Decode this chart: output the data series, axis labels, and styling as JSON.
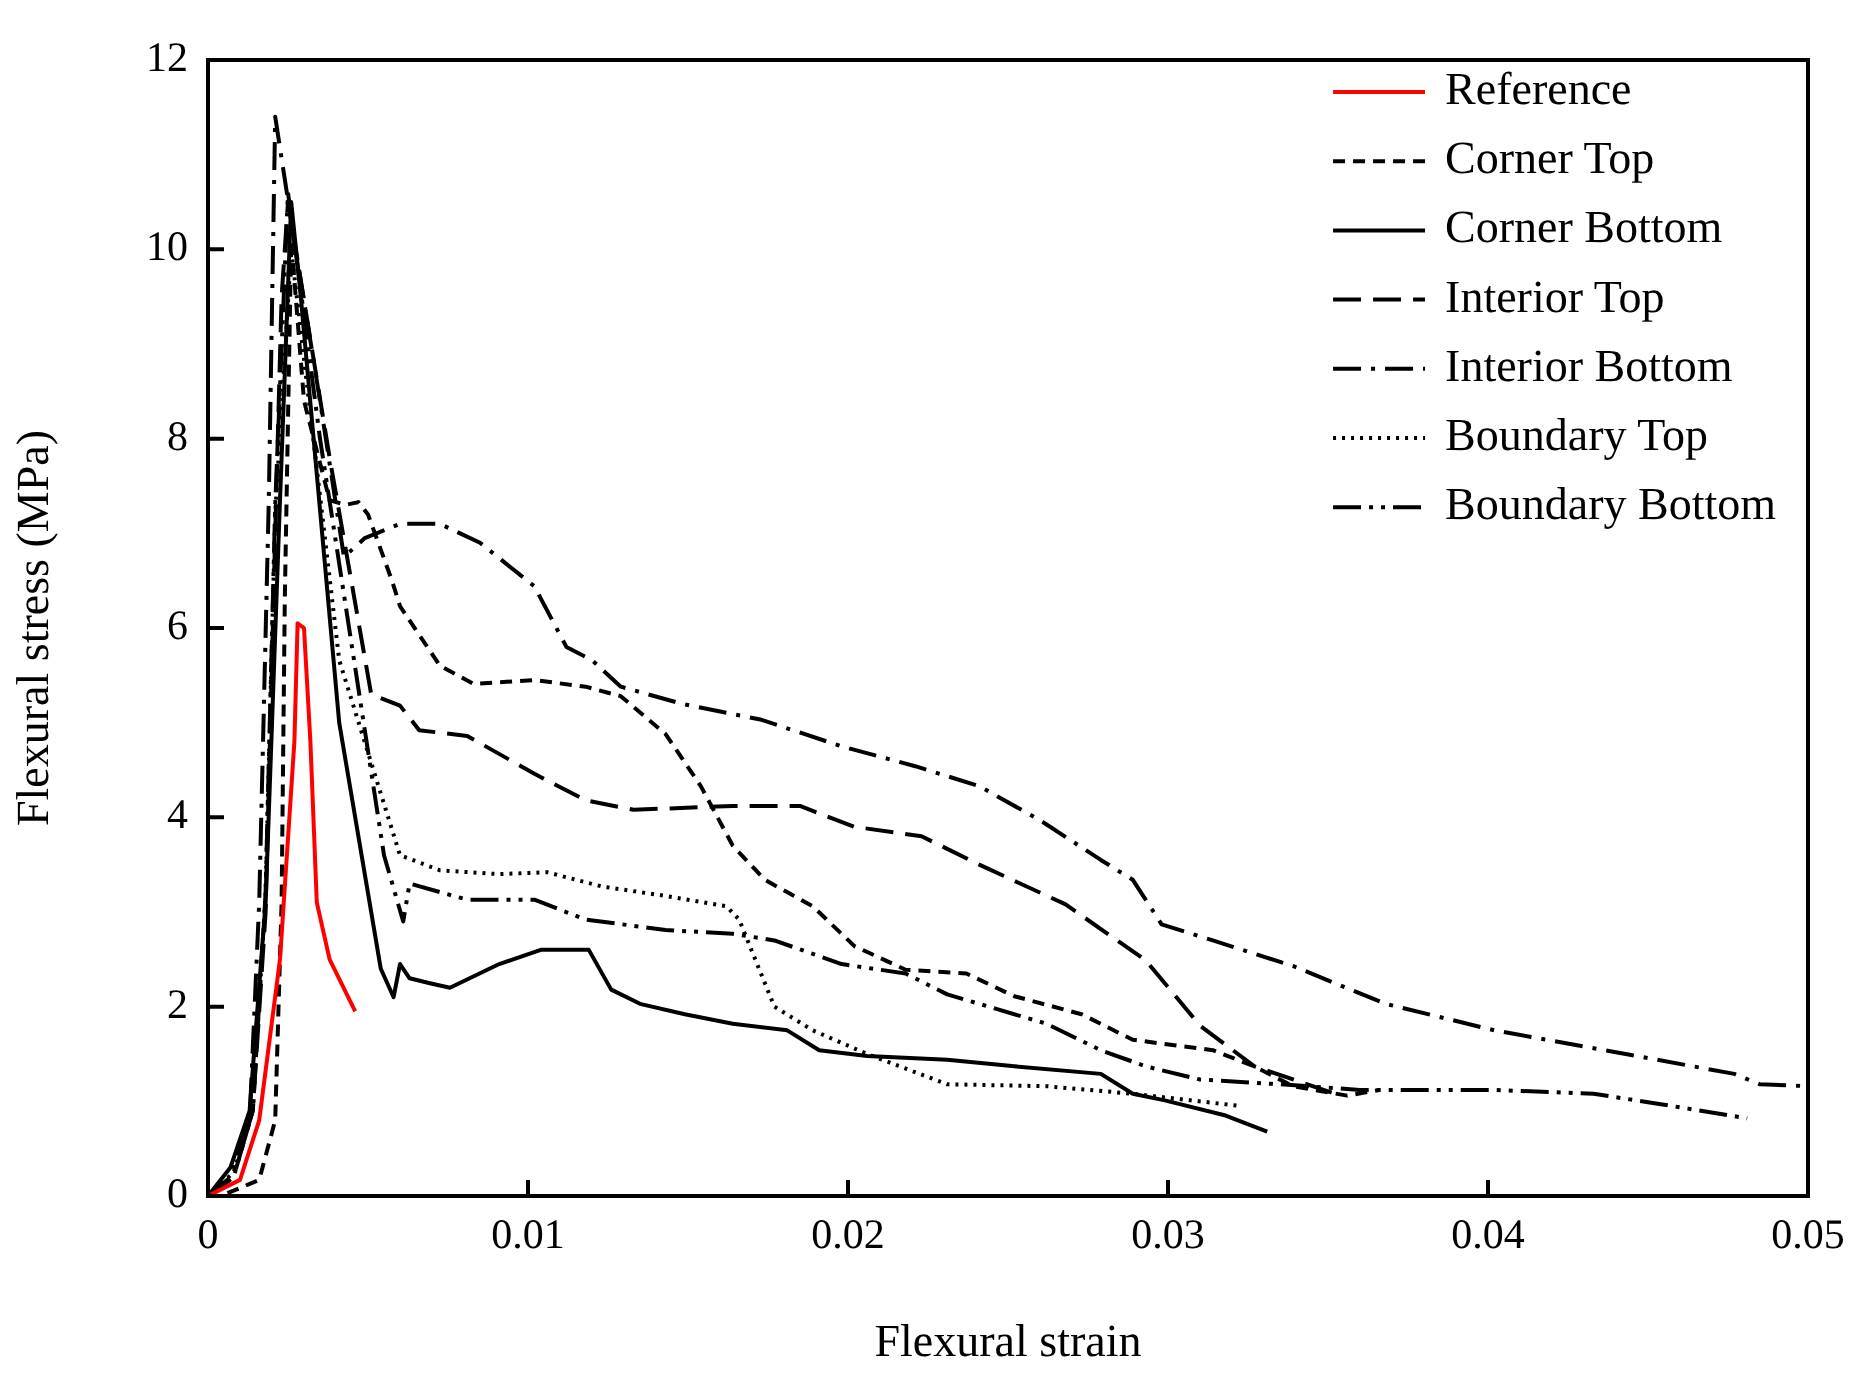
{
  "chart_data": {
    "type": "line",
    "xlabel": "Flexural strain",
    "ylabel": "Flexural stress (MPa)",
    "xlim": [
      0,
      0.05
    ],
    "ylim": [
      0,
      12
    ],
    "xticks": [
      0,
      0.01,
      0.02,
      0.03,
      0.04,
      0.05
    ],
    "yticks": [
      0,
      2,
      4,
      6,
      8,
      10,
      12
    ],
    "grid": false,
    "legend": "top right",
    "marker": "none",
    "series": [
      {
        "name": "Reference",
        "color": "#ff0000",
        "line_style": "solid",
        "x": [
          0,
          0.001,
          0.0016,
          0.00225,
          0.0027,
          0.0028,
          0.003,
          0.0032,
          0.0034,
          0.0038,
          0.0046
        ],
        "values": [
          0,
          0.17,
          0.8,
          2.5,
          4.8,
          6.05,
          6.0,
          4.8,
          3.1,
          2.5,
          1.95
        ]
      },
      {
        "name": "Corner Top",
        "color": "#000000",
        "line_style": "dashed",
        "x": [
          0,
          0.0004,
          0.0016,
          0.0021,
          0.0023,
          0.0024,
          0.0026,
          0.003,
          0.0038,
          0.0043,
          0.0047,
          0.005,
          0.00575,
          0.006,
          0.00725,
          0.0083,
          0.0102,
          0.0118,
          0.0129,
          0.0143,
          0.0154,
          0.0164,
          0.0174,
          0.0189,
          0.0202,
          0.0218,
          0.0237,
          0.0252,
          0.0273,
          0.0289,
          0.0314,
          0.0327,
          0.0339,
          0.0356,
          0.0366
        ],
        "values": [
          0,
          0,
          0.17,
          0.8,
          3.1,
          6.3,
          10.1,
          8.4,
          7.35,
          7.3,
          7.33,
          7.2,
          6.5,
          6.23,
          5.6,
          5.41,
          5.45,
          5.38,
          5.28,
          4.88,
          4.33,
          3.7,
          3.34,
          3.06,
          2.64,
          2.39,
          2.35,
          2.11,
          1.92,
          1.65,
          1.54,
          1.37,
          1.16,
          1.06,
          1.12
        ]
      },
      {
        "name": "Corner Bottom",
        "color": "#000000",
        "line_style": "solid",
        "x": [
          0,
          0.0007,
          0.0013,
          0.0018,
          0.00225,
          0.0026,
          0.0029,
          0.0041,
          0.0054,
          0.0058,
          0.006,
          0.0063,
          0.0069,
          0.00756,
          0.0091,
          0.0104,
          0.0119,
          0.0126,
          0.0135,
          0.0149,
          0.0164,
          0.0181,
          0.0191,
          0.0206,
          0.0231,
          0.0252,
          0.0279,
          0.0289,
          0.0299,
          0.0318,
          0.0331
        ],
        "values": [
          0,
          0.3,
          0.9,
          3.1,
          7.35,
          10.5,
          9.5,
          5.0,
          2.4,
          2.1,
          2.45,
          2.3,
          2.25,
          2.2,
          2.45,
          2.6,
          2.6,
          2.18,
          2.03,
          1.92,
          1.82,
          1.75,
          1.54,
          1.48,
          1.44,
          1.37,
          1.29,
          1.08,
          1.01,
          0.85,
          0.68
        ]
      },
      {
        "name": "Interior Top",
        "color": "#000000",
        "line_style": "longdash",
        "x": [
          0,
          0.0008,
          0.0014,
          0.0018,
          0.0021,
          0.0023,
          0.0025,
          0.0038,
          0.0051,
          0.006,
          0.0066,
          0.0081,
          0.0102,
          0.0118,
          0.0133,
          0.0164,
          0.0185,
          0.0202,
          0.0223,
          0.0241,
          0.0268,
          0.0293,
          0.031,
          0.0327,
          0.0354
        ],
        "values": [
          0,
          0.2,
          0.9,
          3.0,
          7.0,
          9.5,
          10.5,
          7.8,
          5.3,
          5.18,
          4.92,
          4.86,
          4.46,
          4.18,
          4.08,
          4.12,
          4.12,
          3.9,
          3.8,
          3.5,
          3.08,
          2.49,
          1.8,
          1.37,
          1.06
        ]
      },
      {
        "name": "Interior Bottom",
        "color": "#000000",
        "line_style": "dashdot",
        "x": [
          0,
          0.0007,
          0.0013,
          0.0016,
          0.0019,
          0.0021,
          0.0026,
          0.0035,
          0.00425,
          0.0049,
          0.006,
          0.00725,
          0.0085,
          0.0102,
          0.0112,
          0.012,
          0.0129,
          0.0148,
          0.0173,
          0.0198,
          0.0221,
          0.0241,
          0.026,
          0.0279,
          0.0289,
          0.0298,
          0.0314,
          0.0339,
          0.0368,
          0.0402,
          0.0443,
          0.0477,
          0.0485,
          0.05
        ],
        "values": [
          0,
          0.2,
          0.8,
          3.1,
          7.35,
          11.4,
          10.3,
          8.4,
          6.75,
          6.95,
          7.1,
          7.1,
          6.9,
          6.44,
          5.8,
          5.66,
          5.38,
          5.2,
          5.03,
          4.75,
          4.54,
          4.33,
          3.97,
          3.55,
          3.34,
          2.87,
          2.7,
          2.43,
          2.03,
          1.75,
          1.5,
          1.29,
          1.18,
          1.16
        ]
      },
      {
        "name": "Boundary Top",
        "color": "#000000",
        "line_style": "dotted",
        "x": [
          0,
          0.0008,
          0.0014,
          0.0018,
          0.0021,
          0.0026,
          0.0041,
          0.006,
          0.00725,
          0.0091,
          0.0106,
          0.0123,
          0.0143,
          0.0162,
          0.0166,
          0.0171,
          0.0177,
          0.0189,
          0.0206,
          0.0231,
          0.0262,
          0.0289,
          0.0323
        ],
        "values": [
          0,
          0.25,
          0.9,
          3.2,
          7.2,
          10.0,
          5.66,
          3.6,
          3.44,
          3.4,
          3.42,
          3.27,
          3.17,
          3.06,
          2.92,
          2.5,
          2.0,
          1.75,
          1.5,
          1.18,
          1.16,
          1.08,
          0.95
        ]
      },
      {
        "name": "Boundary Bottom",
        "color": "#000000",
        "line_style": "dashdotdot",
        "x": [
          0,
          0.0008,
          0.0014,
          0.0018,
          0.0021,
          0.0025,
          0.0035,
          0.0055,
          0.0061,
          0.0063,
          0.0081,
          0.0102,
          0.0118,
          0.0143,
          0.0164,
          0.0177,
          0.0198,
          0.0218,
          0.0231,
          0.0262,
          0.0279,
          0.0293,
          0.031,
          0.0335,
          0.036,
          0.0402,
          0.0433,
          0.0454,
          0.0481
        ],
        "values": [
          0,
          0.2,
          0.9,
          3.2,
          7.3,
          10.6,
          8.0,
          3.6,
          2.9,
          3.3,
          3.13,
          3.13,
          2.92,
          2.81,
          2.77,
          2.7,
          2.45,
          2.35,
          2.13,
          1.82,
          1.54,
          1.37,
          1.23,
          1.18,
          1.12,
          1.12,
          1.08,
          0.97,
          0.82
        ]
      }
    ]
  }
}
